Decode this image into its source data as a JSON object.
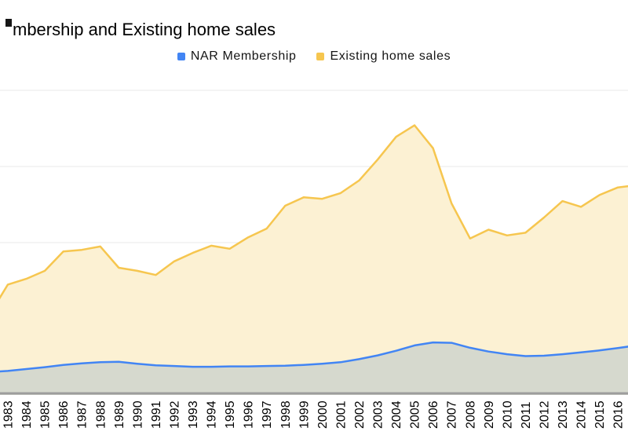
{
  "title_visible": "mbership and Existing home sales",
  "legend": [
    {
      "label": "NAR Membership",
      "color": "#4285f4"
    },
    {
      "label": "Existing home sales",
      "color": "#f6c64f"
    }
  ],
  "colors": {
    "membership_line": "#4285f4",
    "membership_fill": "#d6d9ce",
    "sales_line": "#f6c64f",
    "sales_fill": "#fcf1d3",
    "gridline": "#e9e9e9",
    "axis_line": "#9d9d9d",
    "text": "#000000"
  },
  "chart_data": {
    "type": "area",
    "title": "mbership and Existing home sales",
    "xlabel": "",
    "ylabel": "",
    "units": "millions",
    "legend_position": "top-center",
    "grid": true,
    "grid_step": 2,
    "ylim": [
      0,
      8
    ],
    "x_tick_rotation": -90,
    "x": [
      1983,
      1984,
      1985,
      1986,
      1987,
      1988,
      1989,
      1990,
      1991,
      1992,
      1993,
      1994,
      1995,
      1996,
      1997,
      1998,
      1999,
      2000,
      2001,
      2002,
      2003,
      2004,
      2005,
      2006,
      2007,
      2008,
      2009,
      2010,
      2011,
      2012,
      2013,
      2014,
      2015,
      2016
    ],
    "series": [
      {
        "name": "NAR Membership",
        "values": [
          0.63,
          0.68,
          0.73,
          0.79,
          0.83,
          0.86,
          0.87,
          0.82,
          0.78,
          0.76,
          0.74,
          0.74,
          0.75,
          0.75,
          0.76,
          0.77,
          0.79,
          0.82,
          0.86,
          0.94,
          1.04,
          1.16,
          1.3,
          1.38,
          1.37,
          1.24,
          1.14,
          1.07,
          1.02,
          1.03,
          1.07,
          1.12,
          1.17,
          1.23
        ]
      },
      {
        "name": "Existing home sales",
        "values": [
          2.9,
          3.05,
          3.26,
          3.77,
          3.81,
          3.9,
          3.34,
          3.26,
          3.15,
          3.51,
          3.73,
          3.92,
          3.84,
          4.14,
          4.37,
          4.97,
          5.19,
          5.15,
          5.3,
          5.63,
          6.18,
          6.78,
          7.08,
          6.48,
          5.03,
          4.11,
          4.34,
          4.19,
          4.26,
          4.66,
          5.09,
          4.94,
          5.25,
          5.45
        ]
      }
    ],
    "edge_clip": {
      "left": {
        "year": 1982,
        "values": [
          0.6,
          2.1
        ]
      },
      "right": {
        "year": 2017,
        "values": [
          1.3,
          5.51
        ]
      }
    }
  }
}
